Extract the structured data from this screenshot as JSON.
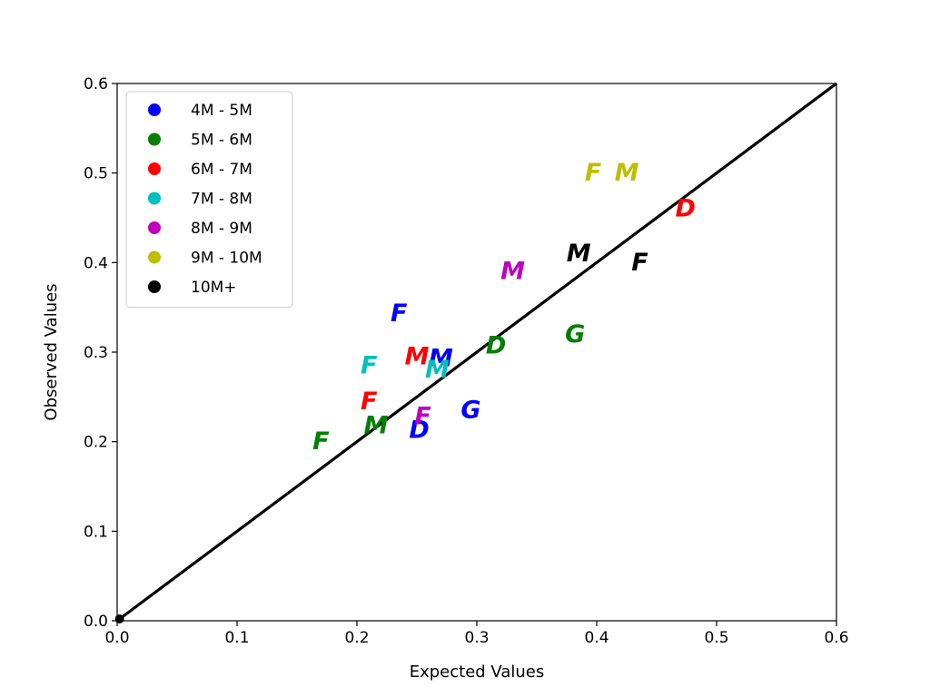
{
  "chart_data": {
    "type": "scatter",
    "xlabel": "Expected Values",
    "ylabel": "Observed Values",
    "xlim": [
      0.0,
      0.6
    ],
    "ylim": [
      0.0,
      0.6
    ],
    "x_ticks": [
      "0.0",
      "0.1",
      "0.2",
      "0.3",
      "0.4",
      "0.5",
      "0.6"
    ],
    "y_ticks": [
      "0.0",
      "0.1",
      "0.2",
      "0.3",
      "0.4",
      "0.5",
      "0.6"
    ],
    "grid": false,
    "legend_position": "top-left",
    "reference_line": {
      "from": [
        0.0,
        0.0
      ],
      "to": [
        0.6,
        0.6
      ],
      "color": "#000000"
    },
    "series": [
      {
        "name": "4M - 5M",
        "color": "#0000ff",
        "points": [
          {
            "x": 0.235,
            "y": 0.343,
            "label": "F"
          },
          {
            "x": 0.27,
            "y": 0.293,
            "label": "M"
          },
          {
            "x": 0.252,
            "y": 0.213,
            "label": "D"
          },
          {
            "x": 0.295,
            "y": 0.235,
            "label": "G"
          }
        ]
      },
      {
        "name": "5M - 6M",
        "color": "#008000",
        "points": [
          {
            "x": 0.17,
            "y": 0.2,
            "label": "F"
          },
          {
            "x": 0.216,
            "y": 0.218,
            "label": "M"
          },
          {
            "x": 0.316,
            "y": 0.307,
            "label": "D"
          },
          {
            "x": 0.382,
            "y": 0.32,
            "label": "G"
          }
        ]
      },
      {
        "name": "6M - 7M",
        "color": "#ff0000",
        "points": [
          {
            "x": 0.21,
            "y": 0.245,
            "label": "F"
          },
          {
            "x": 0.25,
            "y": 0.295,
            "label": "M"
          },
          {
            "x": 0.474,
            "y": 0.46,
            "label": "D"
          }
        ]
      },
      {
        "name": "7M - 8M",
        "color": "#00bfbf",
        "points": [
          {
            "x": 0.21,
            "y": 0.285,
            "label": "F"
          },
          {
            "x": 0.267,
            "y": 0.28,
            "label": "M"
          }
        ]
      },
      {
        "name": "8M - 9M",
        "color": "#bf00bf",
        "points": [
          {
            "x": 0.255,
            "y": 0.228,
            "label": "F"
          },
          {
            "x": 0.33,
            "y": 0.39,
            "label": "M"
          }
        ]
      },
      {
        "name": "9M - 10M",
        "color": "#bfbf00",
        "points": [
          {
            "x": 0.397,
            "y": 0.5,
            "label": "F"
          },
          {
            "x": 0.425,
            "y": 0.5,
            "label": "M"
          }
        ]
      },
      {
        "name": "10M+",
        "color": "#000000",
        "points": [
          {
            "x": 0.385,
            "y": 0.41,
            "label": "M"
          },
          {
            "x": 0.436,
            "y": 0.4,
            "label": "F"
          },
          {
            "x": 0.002,
            "y": 0.002,
            "marker": "dot"
          }
        ]
      }
    ]
  }
}
